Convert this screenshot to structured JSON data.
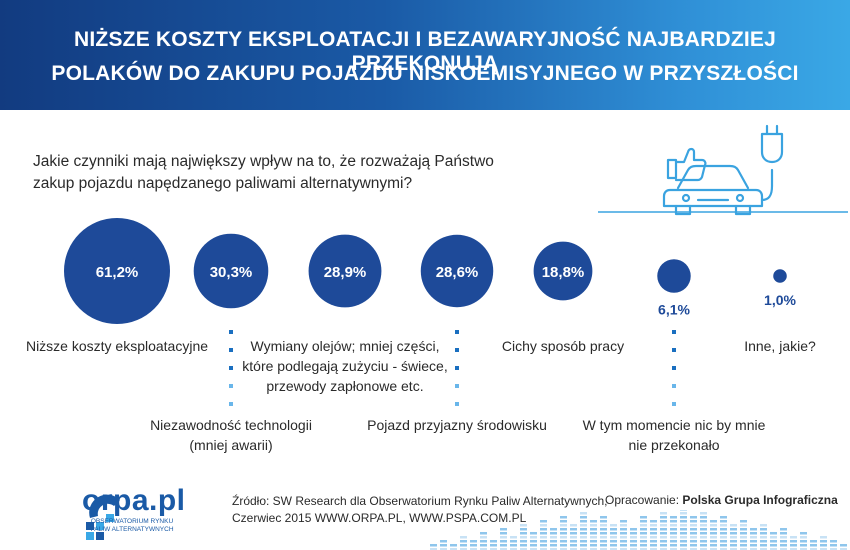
{
  "header": {
    "title_line1": "NIŻSZE KOSZTY EKSPLOATACJI I BEZAWARYJNOŚĆ NAJBARDZIEJ PRZEKONUJĄ",
    "title_line2": "POLAKÓW DO ZAKUPU POJAZDU NISKOEMISYJNEGO W PRZYSZŁOŚCI"
  },
  "question_line1": "Jakie czynniki mają największy wpływ na to, że rozważają Państwo",
  "question_line2": "zakup pojazdu napędzanego paliwami alternatywnymi?",
  "colors": {
    "accent": "#1e4a99",
    "header_start": "#123b80",
    "header_end": "#3aa8e6",
    "dots": "#1a6fc0"
  },
  "chart_data": {
    "type": "bubble",
    "unit": "%",
    "items": [
      {
        "value": 61.2,
        "label_value": "61,2%",
        "label": [
          "Niższe koszty eksploatacyjne"
        ]
      },
      {
        "value": 30.3,
        "label_value": "30,3%",
        "label": [
          "Niezawodność technologii",
          "(mniej awarii)"
        ]
      },
      {
        "value": 28.9,
        "label_value": "28,9%",
        "label": [
          "Wymiany olejów; mniej części,",
          "które podlegają zużyciu - świece,",
          "przewody zapłonowe etc."
        ]
      },
      {
        "value": 28.6,
        "label_value": "28,6%",
        "label": [
          "Pojazd przyjazny środowisku"
        ]
      },
      {
        "value": 18.8,
        "label_value": "18,8%",
        "label": [
          "Cichy sposób pracy"
        ]
      },
      {
        "value": 6.1,
        "label_value": "6,1%",
        "label": [
          "W tym momencie nic by mnie",
          "nie przekonało"
        ]
      },
      {
        "value": 1.0,
        "label_value": "1,0%",
        "label": [
          "Inne, jakie?"
        ]
      }
    ]
  },
  "footer": {
    "logo": "orpa.pl",
    "logo_sub1": "OBSERWATORIUM RYNKU",
    "logo_sub2": "PALIW ALTERNATYWNYCH",
    "source_line1": "Źródło: SW Research dla Obserwatorium Rynku Paliw Alternatywnych,",
    "source_line2": "Czerwiec 2015 WWW.ORPA.PL, WWW.PSPA.COM.PL",
    "credits_prefix": "Opracowanie:",
    "credits_name": "Polska Grupa Infograficzna"
  }
}
